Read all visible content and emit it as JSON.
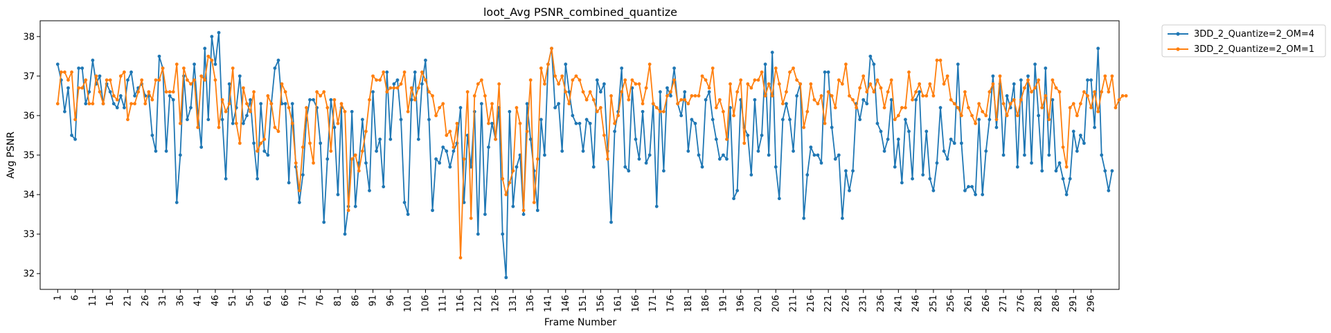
{
  "chart_data": {
    "type": "line",
    "title": "loot_Avg PSNR_combined_quantize",
    "xlabel": "Frame Number",
    "ylabel": "Avg PSNR",
    "ylim": [
      31.6,
      38.4
    ],
    "xlim": [
      -4,
      304
    ],
    "y_ticks": [
      32,
      33,
      34,
      35,
      36,
      37,
      38
    ],
    "x_ticks": [
      1,
      6,
      11,
      16,
      21,
      26,
      31,
      36,
      41,
      46,
      51,
      56,
      61,
      66,
      71,
      76,
      81,
      86,
      91,
      96,
      101,
      106,
      111,
      116,
      121,
      126,
      131,
      136,
      141,
      146,
      151,
      156,
      161,
      166,
      171,
      176,
      181,
      186,
      191,
      196,
      201,
      206,
      211,
      216,
      221,
      226,
      231,
      236,
      241,
      246,
      251,
      256,
      261,
      266,
      271,
      276,
      281,
      286,
      291,
      296
    ],
    "grid": false,
    "legend_position": "outside-top-right",
    "series": [
      {
        "name": "3DD_2_Quantize=2_OM=4",
        "color": "#1f77b4",
        "start_frame": 1,
        "values": [
          37.3,
          36.9,
          36.1,
          36.7,
          35.5,
          35.4,
          37.2,
          37.2,
          36.3,
          36.6,
          37.4,
          36.8,
          37.0,
          36.3,
          36.8,
          36.6,
          36.3,
          36.2,
          36.5,
          36.2,
          36.9,
          37.1,
          36.5,
          36.7,
          36.8,
          36.5,
          36.5,
          35.5,
          35.1,
          37.5,
          37.2,
          35.1,
          36.5,
          36.4,
          33.8,
          35.0,
          37.0,
          35.9,
          36.2,
          37.3,
          36.1,
          35.2,
          37.7,
          35.9,
          38.0,
          37.3,
          38.1,
          35.9,
          34.4,
          36.8,
          35.8,
          36.2,
          37.0,
          35.8,
          36.0,
          36.4,
          35.3,
          34.4,
          36.3,
          35.1,
          35.0,
          36.3,
          37.2,
          37.4,
          36.3,
          36.3,
          34.3,
          36.3,
          34.7,
          33.8,
          34.5,
          35.9,
          36.4,
          36.4,
          36.2,
          35.3,
          33.3,
          34.9,
          36.4,
          35.7,
          34.0,
          36.2,
          33.0,
          33.7,
          36.1,
          33.7,
          34.8,
          35.9,
          34.8,
          34.1,
          36.6,
          35.1,
          35.4,
          34.2,
          37.1,
          35.4,
          36.8,
          36.9,
          35.9,
          33.8,
          33.5,
          36.4,
          37.1,
          35.4,
          36.8,
          37.4,
          35.9,
          33.6,
          34.9,
          34.8,
          35.2,
          35.1,
          34.7,
          35.1,
          35.3,
          36.2,
          33.8,
          35.5,
          34.7,
          36.1,
          33.0,
          36.3,
          33.5,
          35.2,
          35.8,
          35.4,
          36.2,
          33.0,
          31.9,
          36.1,
          33.7,
          34.7,
          35.0,
          33.5,
          36.3,
          35.4,
          34.6,
          33.6,
          35.9,
          35.0,
          37.3,
          37.7,
          36.2,
          36.3,
          35.1,
          37.3,
          36.6,
          36.0,
          35.8,
          35.8,
          35.1,
          35.9,
          35.8,
          34.7,
          36.9,
          36.6,
          36.8,
          35.1,
          33.3,
          35.6,
          36.1,
          37.2,
          34.7,
          34.6,
          36.7,
          35.4,
          34.9,
          36.1,
          34.8,
          35.0,
          36.3,
          33.7,
          36.6,
          34.6,
          36.7,
          36.5,
          37.2,
          36.3,
          36.0,
          36.6,
          35.1,
          35.9,
          35.8,
          35.0,
          34.7,
          36.4,
          36.6,
          35.9,
          35.4,
          34.9,
          35.0,
          34.9,
          36.2,
          33.9,
          34.1,
          36.4,
          35.7,
          35.5,
          34.5,
          36.4,
          35.1,
          35.5,
          37.3,
          35.0,
          37.6,
          34.7,
          33.9,
          35.9,
          36.3,
          35.9,
          35.1,
          36.5,
          36.8,
          33.4,
          34.5,
          35.2,
          35.0,
          35.0,
          34.8,
          37.1,
          37.1,
          35.7,
          34.9,
          35.0,
          33.4,
          34.6,
          34.1,
          34.6,
          36.3,
          35.9,
          36.4,
          36.3,
          37.5,
          37.3,
          35.8,
          35.6,
          35.1,
          35.4,
          36.4,
          34.7,
          35.4,
          34.3,
          35.9,
          35.6,
          34.4,
          36.4,
          36.6,
          34.5,
          35.6,
          34.4,
          34.1,
          34.8,
          36.2,
          35.1,
          34.9,
          35.4,
          35.3,
          37.3,
          35.3,
          34.1,
          34.2,
          34.2,
          34.0,
          35.9,
          34.0,
          35.1,
          35.9,
          37.0,
          35.7,
          36.8,
          35.0,
          36.5,
          36.2,
          36.8,
          34.7,
          36.9,
          35.0,
          37.0,
          34.8,
          37.3,
          36.0,
          34.6,
          37.2,
          35.0,
          36.4,
          34.6,
          34.8,
          34.4,
          34.0,
          34.4,
          35.6,
          35.1,
          35.5,
          35.3,
          36.9,
          36.9,
          35.7,
          37.7,
          35.0,
          34.6,
          34.1,
          34.6
        ]
      },
      {
        "name": "3DD_2_Quantize=2_OM=1",
        "color": "#ff7f0e",
        "start_frame": 1,
        "values": [
          36.3,
          37.1,
          37.1,
          36.9,
          37.1,
          35.9,
          36.7,
          36.7,
          36.9,
          36.3,
          36.3,
          37.0,
          36.6,
          36.3,
          36.9,
          36.9,
          36.5,
          36.4,
          37.0,
          37.1,
          35.9,
          36.3,
          36.3,
          36.6,
          36.9,
          36.3,
          36.6,
          36.4,
          36.9,
          36.9,
          37.2,
          36.6,
          36.6,
          36.6,
          37.3,
          35.8,
          37.2,
          36.9,
          36.8,
          36.9,
          35.7,
          37.0,
          36.9,
          37.5,
          37.4,
          36.9,
          35.7,
          36.4,
          36.1,
          36.3,
          37.2,
          35.8,
          35.3,
          36.7,
          36.3,
          36.1,
          36.6,
          35.1,
          35.3,
          35.4,
          36.5,
          36.3,
          35.7,
          35.6,
          36.8,
          36.6,
          36.2,
          35.8,
          34.8,
          34.1,
          35.2,
          36.2,
          35.3,
          34.8,
          36.6,
          36.5,
          36.6,
          36.2,
          35.1,
          36.4,
          35.8,
          36.3,
          36.1,
          33.6,
          34.9,
          35.0,
          34.6,
          35.1,
          35.6,
          36.4,
          37.0,
          36.9,
          36.9,
          37.1,
          36.6,
          36.7,
          36.7,
          36.7,
          36.8,
          37.1,
          36.1,
          36.7,
          36.4,
          36.7,
          37.1,
          36.9,
          36.6,
          36.5,
          36.0,
          36.2,
          36.3,
          35.5,
          35.6,
          35.2,
          35.8,
          32.4,
          34.9,
          36.6,
          33.4,
          36.5,
          36.8,
          36.9,
          36.5,
          35.8,
          36.3,
          35.4,
          36.8,
          34.4,
          34.0,
          34.3,
          34.6,
          36.2,
          35.8,
          33.6,
          35.6,
          36.9,
          33.8,
          34.9,
          37.2,
          36.8,
          37.3,
          37.7,
          37.0,
          36.8,
          37.0,
          36.6,
          36.3,
          36.9,
          37.0,
          36.9,
          36.6,
          36.4,
          36.6,
          36.4,
          36.1,
          36.2,
          35.5,
          34.9,
          36.5,
          35.8,
          36.0,
          36.6,
          36.9,
          36.4,
          36.9,
          36.8,
          36.8,
          36.3,
          36.7,
          37.3,
          36.3,
          36.2,
          36.1,
          36.1,
          36.5,
          36.6,
          36.9,
          36.3,
          36.4,
          36.4,
          36.3,
          36.5,
          36.5,
          36.5,
          37.0,
          36.9,
          36.7,
          37.2,
          36.2,
          36.4,
          36.1,
          35.4,
          36.8,
          36.0,
          36.6,
          36.9,
          35.3,
          36.8,
          36.7,
          36.9,
          36.9,
          37.1,
          36.5,
          36.8,
          36.5,
          37.2,
          36.8,
          36.3,
          36.6,
          37.1,
          37.2,
          36.9,
          36.8,
          35.7,
          36.1,
          36.8,
          36.4,
          36.3,
          36.5,
          35.8,
          36.6,
          36.5,
          36.2,
          36.9,
          36.8,
          37.3,
          36.5,
          36.4,
          36.2,
          36.7,
          37.0,
          36.6,
          36.8,
          36.6,
          36.9,
          36.7,
          36.2,
          36.6,
          36.9,
          35.9,
          36.0,
          36.2,
          36.2,
          37.1,
          36.4,
          36.6,
          36.8,
          36.5,
          36.5,
          36.8,
          36.5,
          37.4,
          37.4,
          36.8,
          37.0,
          36.4,
          36.3,
          36.2,
          36.0,
          36.6,
          36.2,
          36.0,
          35.8,
          36.3,
          36.1,
          36.0,
          36.6,
          36.8,
          35.9,
          37.0,
          36.3,
          36.0,
          36.3,
          36.4,
          36.0,
          36.4,
          36.7,
          36.9,
          36.6,
          36.7,
          36.9,
          36.2,
          36.5,
          35.9,
          36.9,
          36.7,
          36.6,
          35.2,
          34.7,
          36.2,
          36.3,
          36.0,
          36.3,
          36.6,
          36.5,
          36.2,
          36.6,
          36.1,
          36.6,
          37.0,
          36.6,
          37.0,
          36.2,
          36.4,
          36.5,
          36.5
        ]
      }
    ]
  }
}
